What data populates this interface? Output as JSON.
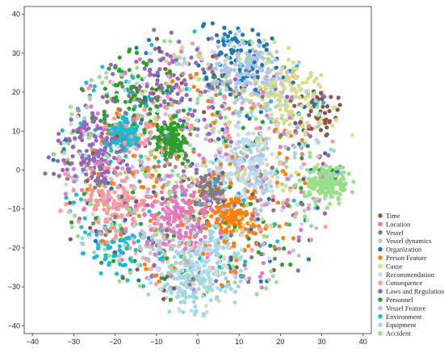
{
  "chart_data": {
    "type": "scatter",
    "title": "",
    "xlabel": "",
    "ylabel": "",
    "xlim": [
      -42,
      42
    ],
    "ylim": [
      -42,
      42
    ],
    "x_ticks": [
      -40,
      -30,
      -20,
      -10,
      0,
      10,
      20,
      30,
      40
    ],
    "y_ticks": [
      -40,
      -30,
      -20,
      -10,
      0,
      10,
      20,
      30,
      40
    ],
    "grid": false,
    "legend_position": "bottom-right outside",
    "series": [
      {
        "name": "Time",
        "color": "#8c564b",
        "count": 90,
        "clusters": [
          {
            "cx": 30,
            "cy": 15,
            "r": 8
          },
          {
            "cx": -5,
            "cy": 0,
            "r": 36
          }
        ]
      },
      {
        "name": "Location",
        "color": "#e377c2",
        "count": 320,
        "clusters": [
          {
            "cx": -5,
            "cy": -12,
            "r": 10
          },
          {
            "cx": 0,
            "cy": 0,
            "r": 34
          }
        ]
      },
      {
        "name": "Vessel",
        "color": "#7f7f7f",
        "count": 160,
        "clusters": [
          {
            "cx": 3,
            "cy": -5,
            "r": 4
          },
          {
            "cx": 0,
            "cy": 0,
            "r": 30
          }
        ]
      },
      {
        "name": "Vessel dynamics",
        "color": "#c7c7c7",
        "count": 120,
        "clusters": [
          {
            "cx": -10,
            "cy": -18,
            "r": 8
          },
          {
            "cx": 0,
            "cy": 0,
            "r": 34
          }
        ]
      },
      {
        "name": "Organization",
        "color": "#1f77b4",
        "count": 160,
        "clusters": [
          {
            "cx": 10,
            "cy": 30,
            "r": 10
          },
          {
            "cx": 0,
            "cy": 0,
            "r": 36
          }
        ]
      },
      {
        "name": "Person Feature",
        "color": "#ff7f0e",
        "count": 280,
        "clusters": [
          {
            "cx": 8,
            "cy": -12,
            "r": 8
          },
          {
            "cx": 0,
            "cy": -3,
            "r": 28
          }
        ]
      },
      {
        "name": "Cause",
        "color": "#dbdb8d",
        "count": 250,
        "clusters": [
          {
            "cx": 22,
            "cy": 20,
            "r": 10
          },
          {
            "cx": 10,
            "cy": 10,
            "r": 26
          }
        ]
      },
      {
        "name": "Recommendation",
        "color": "#c5dceb",
        "count": 280,
        "clusters": [
          {
            "cx": 12,
            "cy": 2,
            "r": 10
          },
          {
            "cx": 0,
            "cy": -25,
            "r": 12
          },
          {
            "cx": 0,
            "cy": 0,
            "r": 34
          }
        ]
      },
      {
        "name": "Consequence",
        "color": "#ff9896",
        "count": 300,
        "clusters": [
          {
            "cx": -20,
            "cy": -8,
            "r": 10
          },
          {
            "cx": -15,
            "cy": 10,
            "r": 12
          },
          {
            "cx": 0,
            "cy": 0,
            "r": 35
          }
        ]
      },
      {
        "name": "Laws and Regulations",
        "color": "#9467bd",
        "count": 320,
        "clusters": [
          {
            "cx": -25,
            "cy": 5,
            "r": 10
          },
          {
            "cx": -5,
            "cy": 20,
            "r": 14
          },
          {
            "cx": 0,
            "cy": 0,
            "r": 36
          }
        ]
      },
      {
        "name": "Personnel",
        "color": "#2ca02c",
        "count": 300,
        "clusters": [
          {
            "cx": -7,
            "cy": 8,
            "r": 5
          },
          {
            "cx": -15,
            "cy": 20,
            "r": 10
          },
          {
            "cx": 0,
            "cy": 0,
            "r": 34
          }
        ]
      },
      {
        "name": "Vessel Feature",
        "color": "#aec7e8",
        "count": 300,
        "clusters": [
          {
            "cx": 12,
            "cy": 25,
            "r": 10
          },
          {
            "cx": 12,
            "cy": 0,
            "r": 10
          },
          {
            "cx": 0,
            "cy": 0,
            "r": 34
          }
        ]
      },
      {
        "name": "Environment",
        "color": "#17becf",
        "count": 300,
        "clusters": [
          {
            "cx": -18,
            "cy": 9,
            "r": 4
          },
          {
            "cx": -20,
            "cy": -20,
            "r": 12
          },
          {
            "cx": 0,
            "cy": 0,
            "r": 36
          }
        ]
      },
      {
        "name": "Equipment",
        "color": "#9edae5",
        "count": 260,
        "clusters": [
          {
            "cx": -2,
            "cy": -28,
            "r": 10
          },
          {
            "cx": 5,
            "cy": -20,
            "r": 10
          },
          {
            "cx": 0,
            "cy": 0,
            "r": 34
          }
        ]
      },
      {
        "name": "Accident",
        "color": "#98df8a",
        "count": 330,
        "clusters": [
          {
            "cx": 31,
            "cy": -3,
            "r": 5
          },
          {
            "cx": 0,
            "cy": 0,
            "r": 35
          }
        ]
      }
    ]
  }
}
